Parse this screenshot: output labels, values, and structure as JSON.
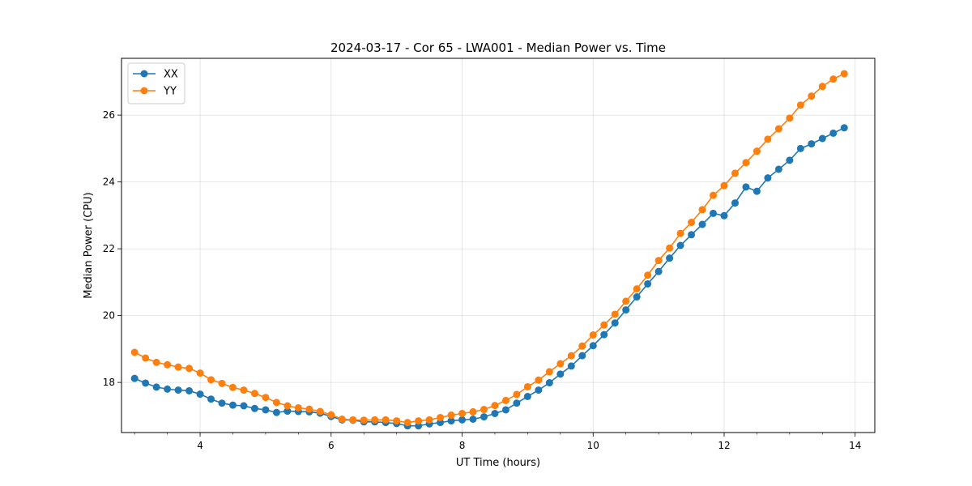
{
  "chart_data": {
    "type": "line",
    "title": "2024-03-17 - Cor 65 - LWA001 - Median Power vs. Time",
    "xlabel": "UT Time (hours)",
    "ylabel": "Median Power (CPU)",
    "xlim": [
      2.8,
      14.3
    ],
    "ylim": [
      16.5,
      27.7
    ],
    "xticks": [
      4,
      6,
      8,
      10,
      12,
      14
    ],
    "xtick_labels": [
      "4",
      "6",
      "8",
      "10",
      "12",
      "14"
    ],
    "yticks": [
      18,
      20,
      22,
      24,
      26
    ],
    "ytick_labels": [
      "18",
      "20",
      "22",
      "24",
      "26"
    ],
    "grid": true,
    "legend_position": "top-left",
    "x": [
      3.0,
      3.1667,
      3.3333,
      3.5,
      3.6667,
      3.8333,
      4.0,
      4.1667,
      4.3333,
      4.5,
      4.6667,
      4.8333,
      5.0,
      5.1667,
      5.3333,
      5.5,
      5.6667,
      5.8333,
      6.0,
      6.1667,
      6.3333,
      6.5,
      6.6667,
      6.8333,
      7.0,
      7.1667,
      7.3333,
      7.5,
      7.6667,
      7.8333,
      8.0,
      8.1667,
      8.3333,
      8.5,
      8.6667,
      8.8333,
      9.0,
      9.1667,
      9.3333,
      9.5,
      9.6667,
      9.8333,
      10.0,
      10.1667,
      10.3333,
      10.5,
      10.6667,
      10.8333,
      11.0,
      11.1667,
      11.3333,
      11.5,
      11.6667,
      11.8333,
      12.0,
      12.1667,
      12.3333,
      12.5,
      12.6667,
      12.8333,
      13.0,
      13.1667,
      13.3333,
      13.5,
      13.6667,
      13.8333
    ],
    "series": [
      {
        "name": "XX",
        "color": "#1f77b4",
        "values": [
          18.12,
          17.98,
          17.86,
          17.8,
          17.77,
          17.75,
          17.65,
          17.5,
          17.38,
          17.32,
          17.3,
          17.22,
          17.18,
          17.1,
          17.14,
          17.13,
          17.12,
          17.08,
          16.98,
          16.88,
          16.87,
          16.82,
          16.82,
          16.8,
          16.77,
          16.7,
          16.7,
          16.76,
          16.8,
          16.85,
          16.88,
          16.9,
          16.97,
          17.07,
          17.18,
          17.38,
          17.58,
          17.77,
          17.99,
          18.25,
          18.49,
          18.8,
          19.1,
          19.43,
          19.78,
          20.17,
          20.56,
          20.95,
          21.32,
          21.72,
          22.1,
          22.42,
          22.73,
          23.06,
          22.99,
          23.37,
          23.85,
          23.72,
          24.12,
          24.38,
          24.65,
          25.0,
          25.14,
          25.3,
          25.46,
          25.62
        ]
      },
      {
        "name": "YY",
        "color": "#ff7f0e",
        "values": [
          18.9,
          18.73,
          18.6,
          18.53,
          18.46,
          18.42,
          18.28,
          18.08,
          17.97,
          17.85,
          17.77,
          17.67,
          17.55,
          17.4,
          17.3,
          17.24,
          17.2,
          17.13,
          17.03,
          16.9,
          16.88,
          16.87,
          16.88,
          16.88,
          16.85,
          16.8,
          16.85,
          16.88,
          16.95,
          17.02,
          17.07,
          17.12,
          17.19,
          17.31,
          17.46,
          17.64,
          17.87,
          18.07,
          18.32,
          18.56,
          18.8,
          19.09,
          19.42,
          19.72,
          20.04,
          20.43,
          20.8,
          21.21,
          21.65,
          22.02,
          22.46,
          22.79,
          23.17,
          23.6,
          23.89,
          24.26,
          24.58,
          24.92,
          25.28,
          25.59,
          25.91,
          26.3,
          26.57,
          26.86,
          27.08,
          27.24
        ]
      }
    ]
  }
}
